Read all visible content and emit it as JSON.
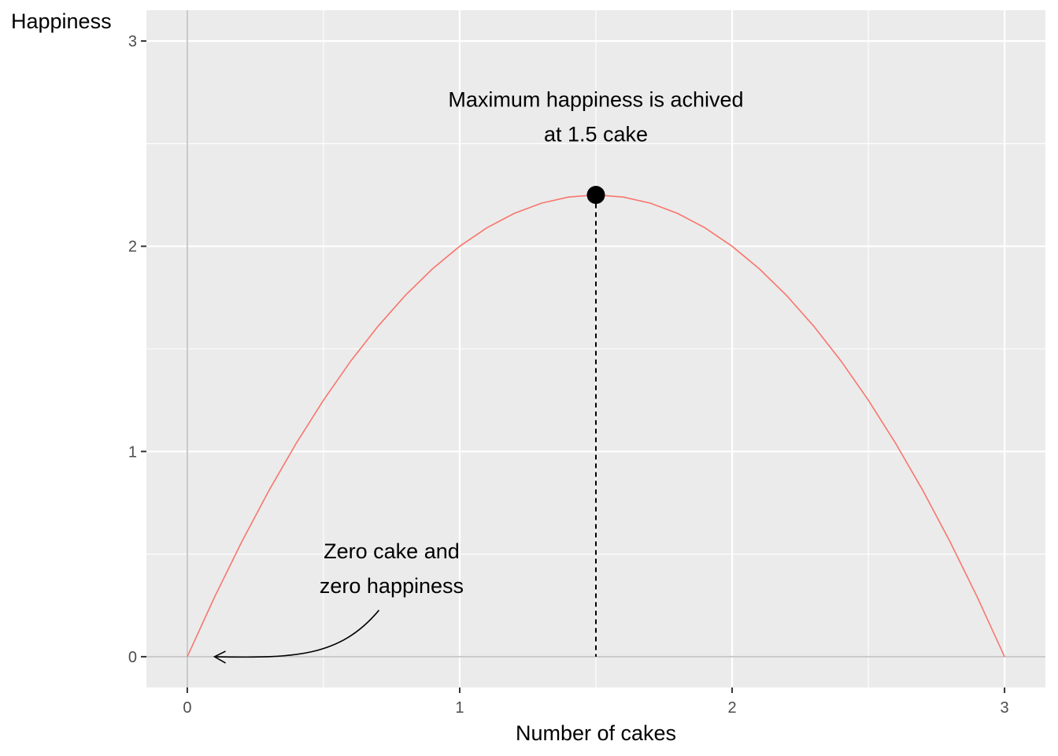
{
  "chart_data": {
    "type": "line",
    "xlabel": "Number of cakes",
    "ylabel": "Happiness",
    "xlim": [
      -0.15,
      3.15
    ],
    "ylim": [
      -0.15,
      3.15
    ],
    "x_ticks": [
      0,
      1,
      2,
      3
    ],
    "y_ticks": [
      0,
      1,
      2,
      3
    ],
    "x_minor": [
      0.5,
      1.5,
      2.5
    ],
    "y_minor": [
      0.5,
      1.5,
      2.5
    ],
    "grid": true,
    "legend": "none",
    "series": [
      {
        "function": "y = 3x - x^2",
        "x": [
          0,
          0.1,
          0.2,
          0.3,
          0.4,
          0.5,
          0.6,
          0.7,
          0.8,
          0.9,
          1.0,
          1.1,
          1.2,
          1.3,
          1.4,
          1.5,
          1.6,
          1.7,
          1.8,
          1.9,
          2.0,
          2.1,
          2.2,
          2.3,
          2.4,
          2.5,
          2.6,
          2.7,
          2.8,
          2.9,
          3.0
        ],
        "y": [
          0,
          0.29,
          0.56,
          0.81,
          1.04,
          1.25,
          1.44,
          1.61,
          1.76,
          1.89,
          2.0,
          2.09,
          2.16,
          2.21,
          2.24,
          2.25,
          2.24,
          2.21,
          2.16,
          2.09,
          2.0,
          1.89,
          1.76,
          1.61,
          1.44,
          1.25,
          1.04,
          0.81,
          0.56,
          0.29,
          0
        ],
        "color": "#F8766D"
      }
    ],
    "highlight_point": {
      "x": 1.5,
      "y": 2.25,
      "color": "#000000"
    },
    "annotations": [
      {
        "lines": [
          "Maximum happiness is achived",
          "at 1.5 cake"
        ],
        "x": 1.5,
        "y": 2.68
      },
      {
        "lines": [
          "Zero cake and",
          "zero happiness"
        ],
        "x": 0.75,
        "y": 0.48,
        "arrow_to": {
          "x": 0.1,
          "y": 0.0
        }
      }
    ],
    "colors": {
      "panel": "#EBEBEB",
      "grid_major": "#FFFFFF",
      "zero_lines": "#C8C8C8"
    }
  }
}
